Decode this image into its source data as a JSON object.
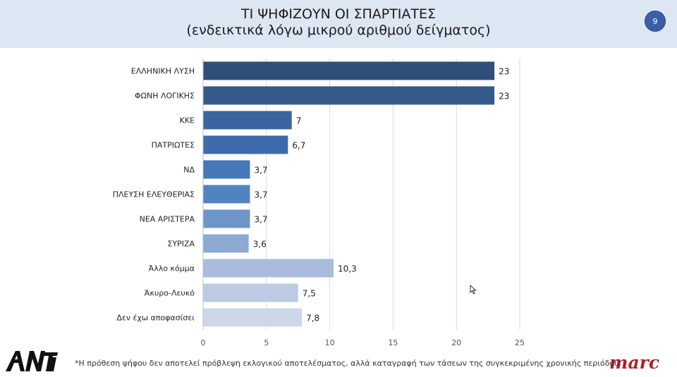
{
  "header": {
    "title": "ΤΙ ΨΗΦΙΖΟΥΝ ΟΙ ΣΠΑΡΤΙΑΤΕΣ",
    "subtitle": "(ενδεικτικά λόγω μικρού αριθμού δείγματος)",
    "page_number": "9",
    "background": "#dde6f3"
  },
  "chart_data": {
    "type": "bar",
    "orientation": "horizontal",
    "categories": [
      "ΕΛΛΗΝΙΚΗ ΛΥΣΗ",
      "ΦΩΝΗ ΛΟΓΙΚΗΣ",
      "ΚΚΕ",
      "ΠΑΤΡΙΩΤΕΣ",
      "ΝΔ",
      "ΠΛΕΥΣΗ ΕΛΕΥΘΕΡΙΑΣ",
      "ΝΕΑ ΑΡΙΣΤΕΡΑ",
      "ΣΥΡΙΖΑ",
      "Άλλο κόμμα",
      "Άκυρο-Λευκό",
      "Δεν έχω αποφασίσει"
    ],
    "values": [
      23,
      23,
      7,
      6.7,
      3.7,
      3.7,
      3.7,
      3.6,
      10.3,
      7.5,
      7.8
    ],
    "value_labels": [
      "23",
      "23",
      "7",
      "6,7",
      "3,7",
      "3,7",
      "3,7",
      "3,6",
      "10,3",
      "7,5",
      "7,8"
    ],
    "colors": [
      "#2f4e78",
      "#355a8a",
      "#3a65a0",
      "#3e6cab",
      "#4677b8",
      "#5283c1",
      "#6d95c9",
      "#8ea9d3",
      "#a9bcdd",
      "#bccae4",
      "#cdd7ea"
    ],
    "xlim": [
      0,
      25
    ],
    "xticks": [
      0,
      5,
      10,
      15,
      20,
      25
    ],
    "grid": true
  },
  "footer": {
    "note": "*Η πρόθεση ψήφου δεν αποτελεί πρόβλεψη εκλογικού αποτελέσματος, αλλά καταγραφή των τάσεων της συγκεκριμένης χρονικής περιόδου.",
    "left_logo": "ANT1",
    "right_logo": "marc"
  }
}
